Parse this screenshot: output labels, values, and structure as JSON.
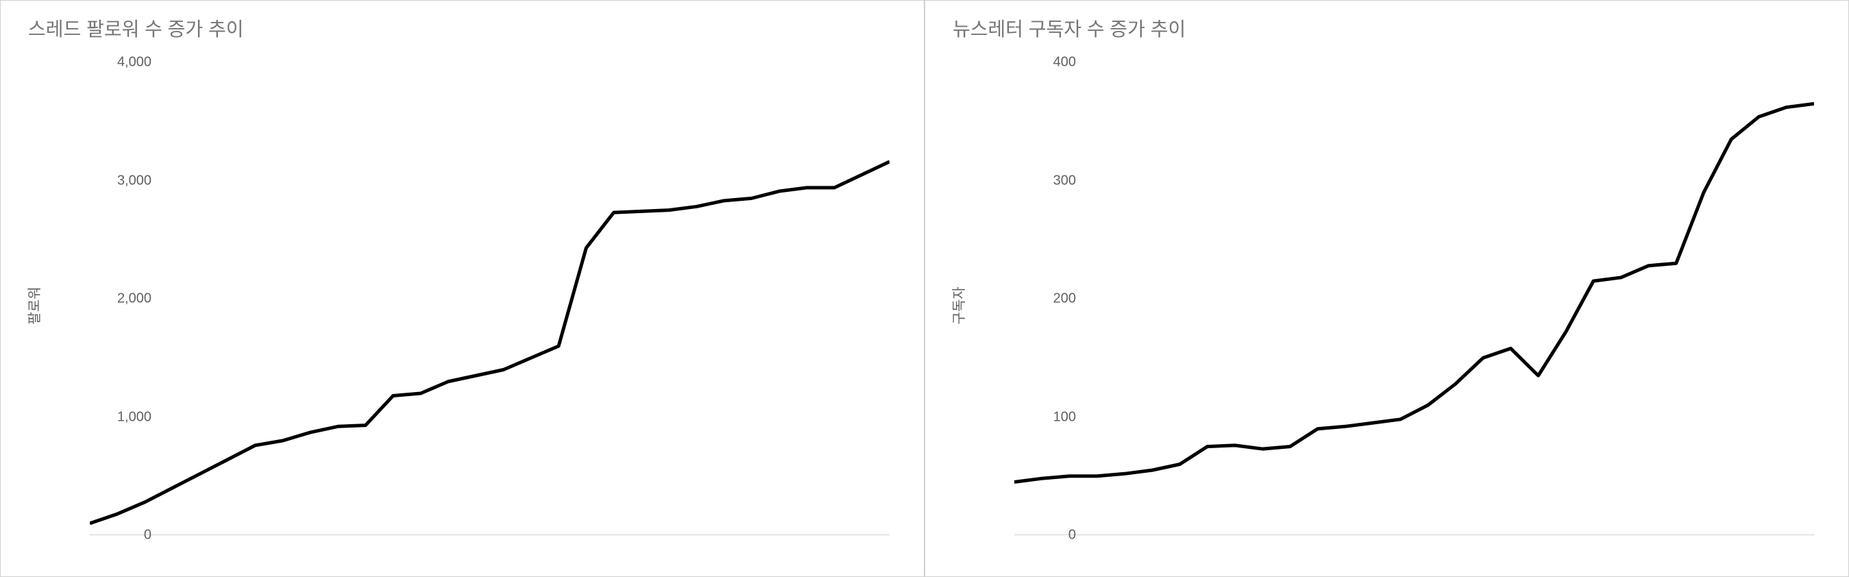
{
  "charts": [
    {
      "title": "스레드 팔로워 수 증가 추이",
      "type": "line",
      "y_axis_label": "팔로워",
      "ylim": [
        0,
        4000
      ],
      "y_ticks": [
        {
          "value": 0,
          "label": "0"
        },
        {
          "value": 1000,
          "label": "1,000"
        },
        {
          "value": 2000,
          "label": "2,000"
        },
        {
          "value": 3000,
          "label": "3,000"
        },
        {
          "value": 4000,
          "label": "4,000"
        }
      ],
      "line_color": "#000000",
      "line_width": 5,
      "background_color": "#ffffff",
      "baseline_color": "#a0a0a0",
      "title_color": "#757575",
      "title_fontsize": 28,
      "label_fontsize": 20,
      "values": [
        100,
        180,
        280,
        400,
        520,
        640,
        760,
        800,
        870,
        920,
        930,
        1180,
        1200,
        1300,
        1350,
        1400,
        1500,
        1600,
        2430,
        2730,
        2740,
        2750,
        2780,
        2830,
        2850,
        2910,
        2940,
        2940,
        3050,
        3160
      ]
    },
    {
      "title": "뉴스레터 구독자 수 증가 추이",
      "type": "line",
      "y_axis_label": "구독자",
      "ylim": [
        0,
        400
      ],
      "y_ticks": [
        {
          "value": 0,
          "label": "0"
        },
        {
          "value": 100,
          "label": "100"
        },
        {
          "value": 200,
          "label": "200"
        },
        {
          "value": 300,
          "label": "300"
        },
        {
          "value": 400,
          "label": "400"
        }
      ],
      "line_color": "#000000",
      "line_width": 5,
      "background_color": "#ffffff",
      "baseline_color": "#a0a0a0",
      "title_color": "#757575",
      "title_fontsize": 28,
      "label_fontsize": 20,
      "values": [
        45,
        48,
        50,
        50,
        52,
        55,
        60,
        75,
        76,
        73,
        75,
        90,
        92,
        95,
        98,
        110,
        128,
        150,
        158,
        135,
        172,
        215,
        218,
        228,
        230,
        290,
        335,
        354,
        362,
        365
      ]
    }
  ]
}
